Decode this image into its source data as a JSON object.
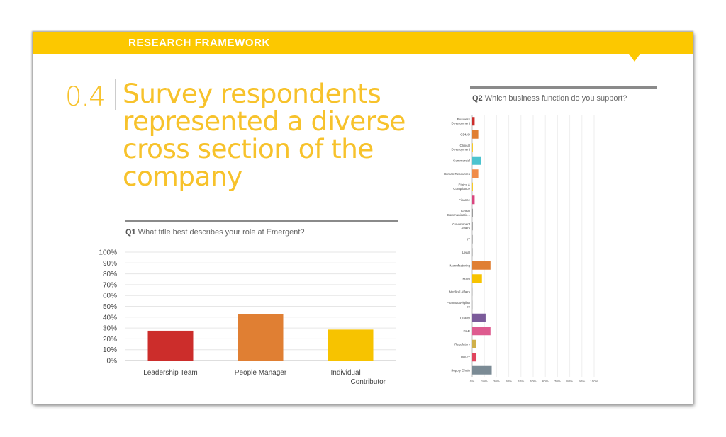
{
  "banner": {
    "title": "RESEARCH FRAMEWORK"
  },
  "section": {
    "number": "0.4",
    "headline_lines": [
      "Survey respondents",
      "represented a diverse",
      "cross section of the",
      "company"
    ]
  },
  "q1": {
    "code": "Q1",
    "question": "What title best describes your role at Emergent?"
  },
  "q2": {
    "code": "Q2",
    "question": "Which business function do you support?"
  },
  "colors": {
    "banner": "#fcc800",
    "headline": "#f7c22b",
    "rule": "#8a8a8a"
  },
  "chart_data": [
    {
      "type": "bar",
      "categories": [
        "Leadership Team",
        "People Manager",
        "Individual Contributor"
      ],
      "category_lines": [
        [
          "Leadership Team"
        ],
        [
          "People Manager"
        ],
        [
          "Individual",
          "Contributor"
        ]
      ],
      "values": [
        27.5,
        42.5,
        28.5
      ],
      "colors": [
        "#cc2d2b",
        "#e07f33",
        "#f7c300"
      ],
      "yticks": [
        "0%",
        "10%",
        "20%",
        "30%",
        "40%",
        "50%",
        "60%",
        "70%",
        "80%",
        "90%",
        "100%"
      ],
      "ylim": [
        0,
        100
      ],
      "grid": true
    },
    {
      "type": "bar",
      "orientation": "horizontal",
      "categories": [
        "Business Development",
        "CDMO",
        "Clinical Development",
        "Commercial",
        "Human Resources",
        "Ethics & Compliance",
        "Finance",
        "Global Communicatio...",
        "Government Affairs",
        "IT",
        "Legal",
        "Manufacturing",
        "MSM",
        "Medical Affairs",
        "Pharmacovigilance",
        "Quality",
        "R&D",
        "Regulatory",
        "WS&T",
        "Supply Chain"
      ],
      "category_lines": [
        [
          "Business",
          "Development"
        ],
        [
          "CDMO"
        ],
        [
          "Clinical",
          "Development"
        ],
        [
          "Commercial"
        ],
        [
          "Human Resources"
        ],
        [
          "Ethics &",
          "Compliance"
        ],
        [
          "Finance"
        ],
        [
          "Global",
          "Communicatio..."
        ],
        [
          "Government",
          "Affairs"
        ],
        [
          "IT"
        ],
        [
          "Legal"
        ],
        [
          "Manufacturing"
        ],
        [
          "MSM"
        ],
        [
          "Medical Affairs"
        ],
        [
          "Pharmacovigilan",
          "ce"
        ],
        [
          "Quality"
        ],
        [
          "R&D"
        ],
        [
          "Regulatory"
        ],
        [
          "WS&T"
        ],
        [
          "Supply Chain"
        ]
      ],
      "values": [
        2,
        5,
        0.5,
        7,
        5,
        0.5,
        2,
        0.5,
        0.5,
        0.5,
        0.5,
        15,
        8,
        0.5,
        0.5,
        11,
        15,
        3,
        3.5,
        16
      ],
      "colors": [
        "#cc2d2b",
        "#e07f33",
        "#f7c300",
        "#4cc3cf",
        "#f08c4a",
        "#f7c300",
        "#d9457f",
        "#8a8a8a",
        "#999999",
        "#aaaaaa",
        "#bbbbbb",
        "#e07f33",
        "#f7c300",
        "#cccccc",
        "#cccccc",
        "#7b5b9a",
        "#de5b8f",
        "#cfb04a",
        "#e0455d",
        "#7b8b95"
      ],
      "xticks": [
        "0%",
        "10%",
        "20%",
        "30%",
        "40%",
        "50%",
        "60%",
        "70%",
        "80%",
        "90%",
        "100%"
      ],
      "xlim": [
        0,
        100
      ],
      "grid": true
    }
  ]
}
